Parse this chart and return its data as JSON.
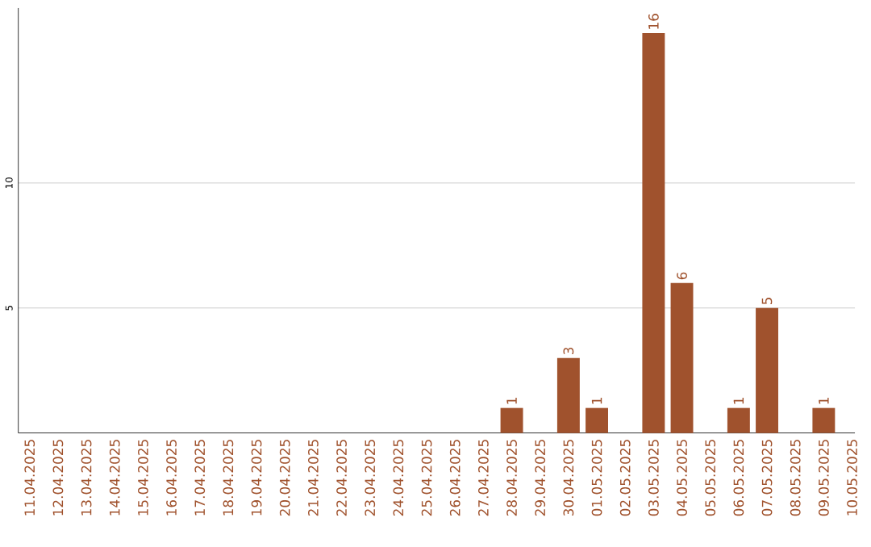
{
  "chart_data": {
    "type": "bar",
    "categories": [
      "11.04.2025",
      "12.04.2025",
      "13.04.2025",
      "14.04.2025",
      "15.04.2025",
      "16.04.2025",
      "17.04.2025",
      "18.04.2025",
      "19.04.2025",
      "20.04.2025",
      "21.04.2025",
      "22.04.2025",
      "23.04.2025",
      "24.04.2025",
      "25.04.2025",
      "26.04.2025",
      "27.04.2025",
      "28.04.2025",
      "29.04.2025",
      "30.04.2025",
      "01.05.2025",
      "02.05.2025",
      "03.05.2025",
      "04.05.2025",
      "05.05.2025",
      "06.05.2025",
      "07.05.2025",
      "08.05.2025",
      "09.05.2025",
      "10.05.2025"
    ],
    "values": [
      0,
      0,
      0,
      0,
      0,
      0,
      0,
      0,
      0,
      0,
      0,
      0,
      0,
      0,
      0,
      0,
      0,
      1,
      0,
      3,
      1,
      0,
      16,
      6,
      0,
      1,
      5,
      0,
      1,
      0
    ],
    "value_labels": [
      null,
      null,
      null,
      null,
      null,
      null,
      null,
      null,
      null,
      null,
      null,
      null,
      null,
      null,
      null,
      null,
      null,
      "1",
      null,
      "3",
      "1",
      null,
      "16",
      "6",
      null,
      "1",
      "5",
      null,
      "1",
      null
    ],
    "color": "#a0522d",
    "ylim": [
      0,
      17
    ],
    "yticks": [
      5,
      10
    ],
    "grid": "y"
  }
}
